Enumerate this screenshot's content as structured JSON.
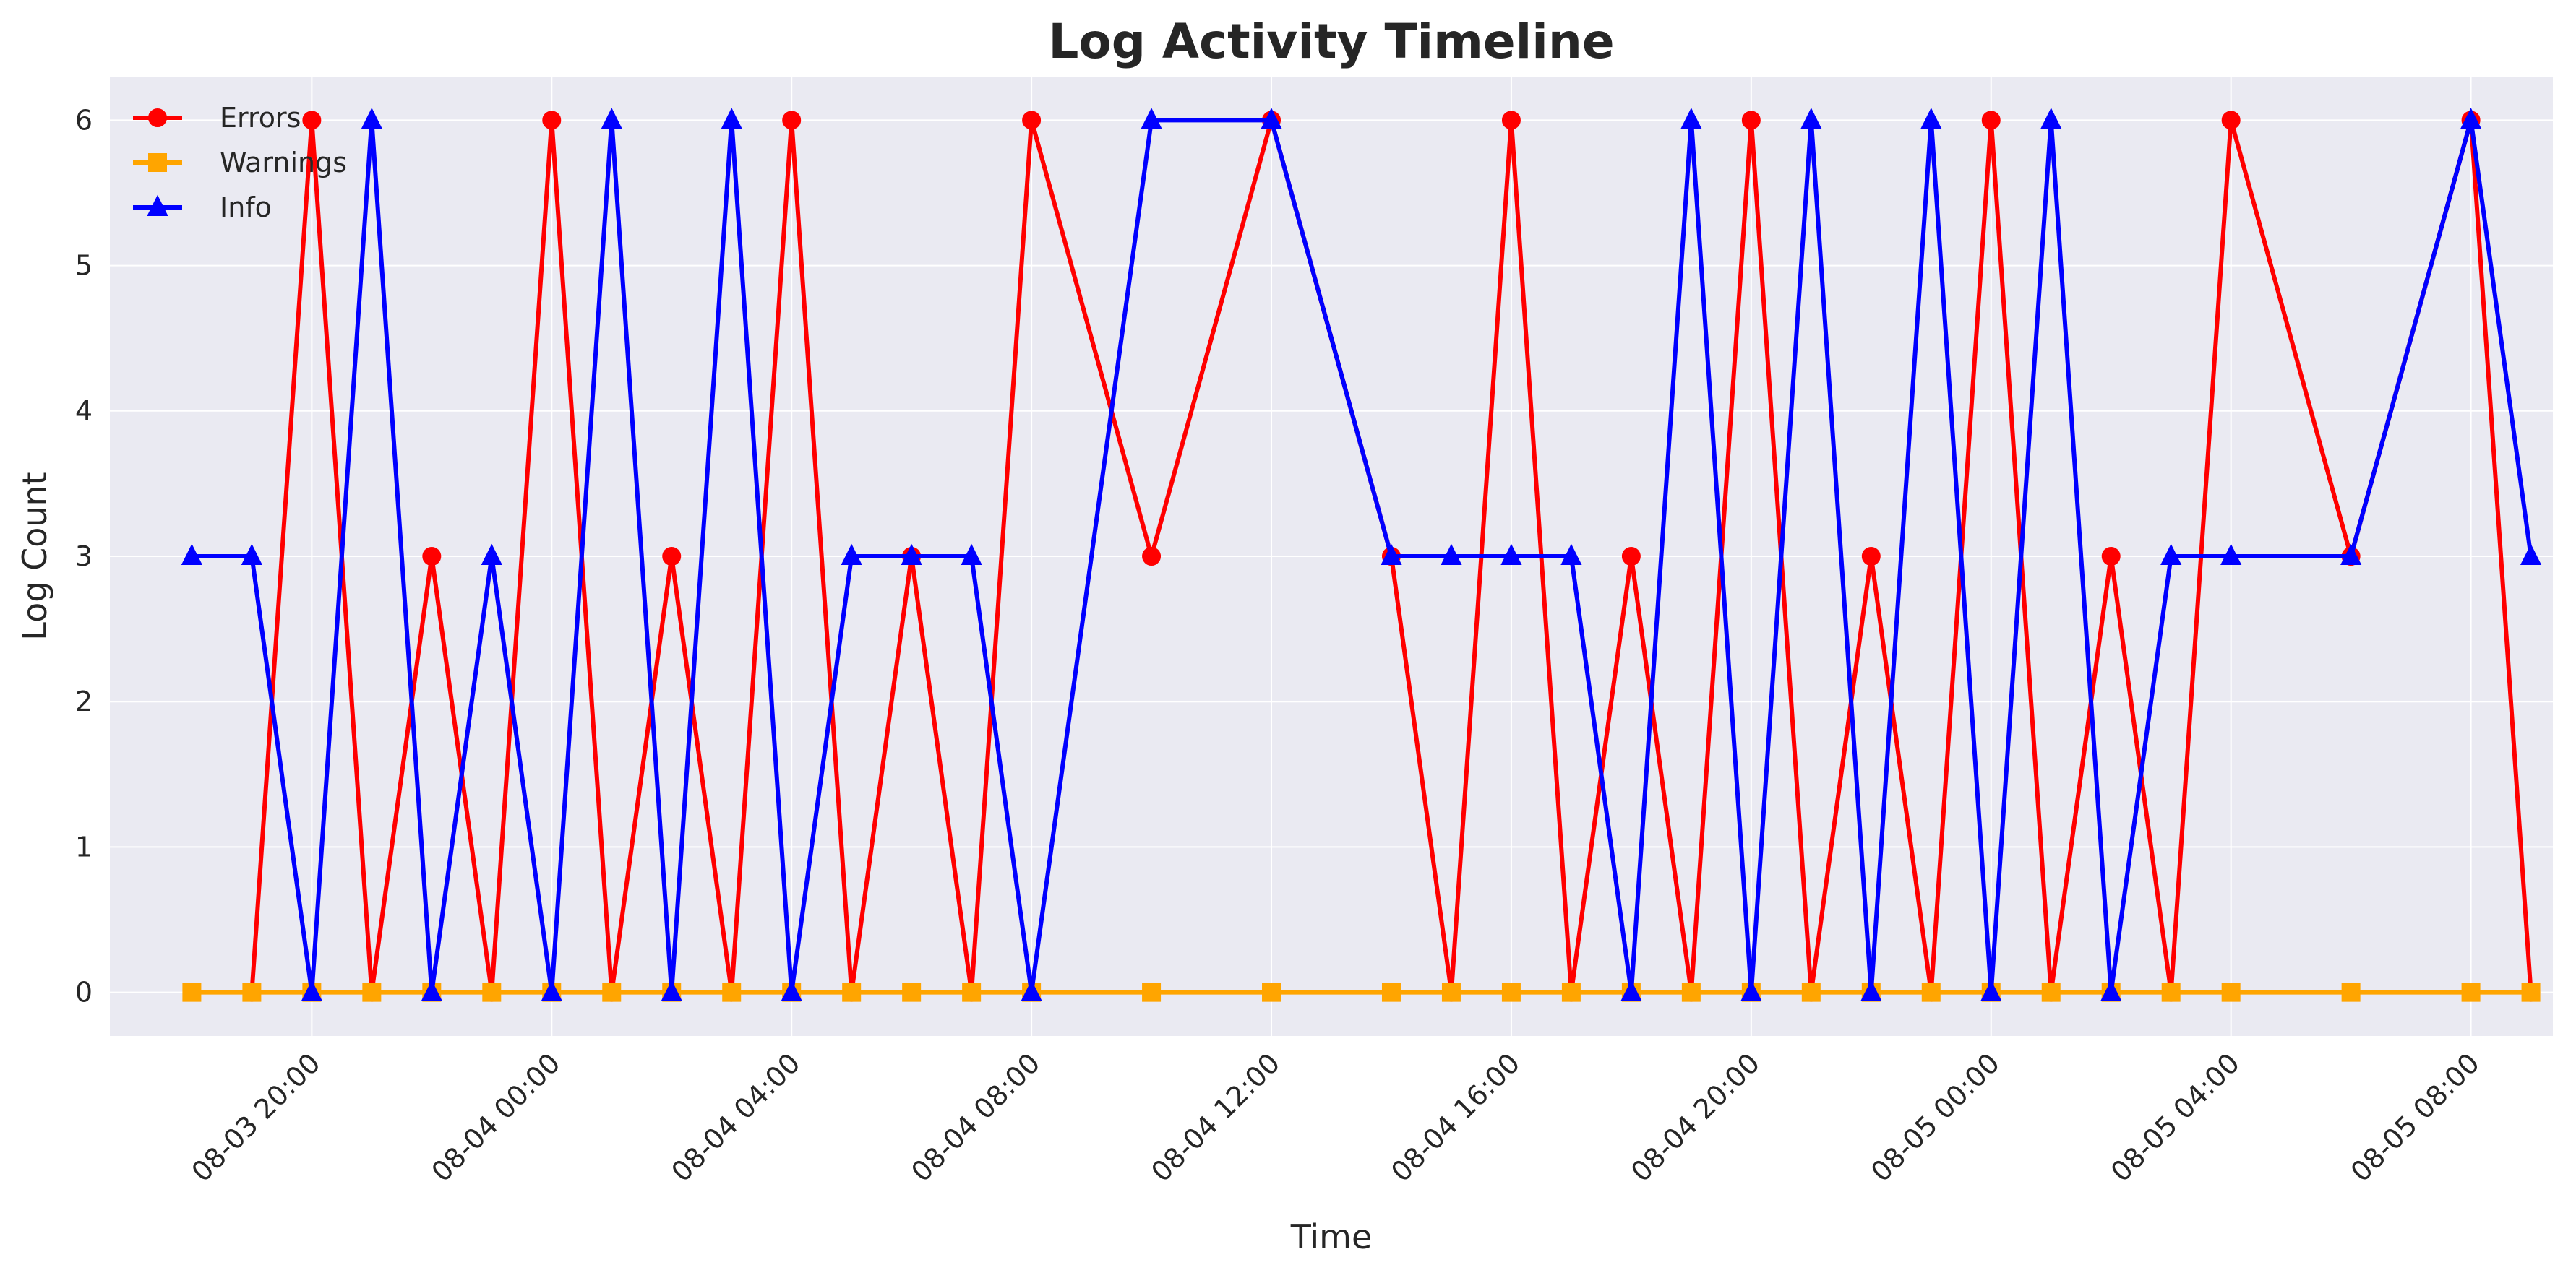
{
  "chart_data": {
    "type": "line",
    "title": "Log Activity Timeline",
    "xlabel": "Time",
    "ylabel": "Log Count",
    "ylim": [
      -0.3,
      6.3
    ],
    "y_ticks": [
      0,
      1,
      2,
      3,
      4,
      5,
      6
    ],
    "xlim": [
      "2025-08-03 16:38",
      "2025-08-05 09:22"
    ],
    "x_ticks": [
      {
        "t": "2025-08-03 20:00",
        "label": "08-03 20:00"
      },
      {
        "t": "2025-08-04 00:00",
        "label": "08-04 00:00"
      },
      {
        "t": "2025-08-04 04:00",
        "label": "08-04 04:00"
      },
      {
        "t": "2025-08-04 08:00",
        "label": "08-04 08:00"
      },
      {
        "t": "2025-08-04 12:00",
        "label": "08-04 12:00"
      },
      {
        "t": "2025-08-04 16:00",
        "label": "08-04 16:00"
      },
      {
        "t": "2025-08-04 20:00",
        "label": "08-04 20:00"
      },
      {
        "t": "2025-08-05 00:00",
        "label": "08-05 00:00"
      },
      {
        "t": "2025-08-05 04:00",
        "label": "08-05 04:00"
      },
      {
        "t": "2025-08-05 08:00",
        "label": "08-05 08:00"
      }
    ],
    "x": [
      "2025-08-03 18:00",
      "2025-08-03 19:00",
      "2025-08-03 20:00",
      "2025-08-03 21:00",
      "2025-08-03 22:00",
      "2025-08-03 23:00",
      "2025-08-04 00:00",
      "2025-08-04 01:00",
      "2025-08-04 02:00",
      "2025-08-04 03:00",
      "2025-08-04 04:00",
      "2025-08-04 05:00",
      "2025-08-04 06:00",
      "2025-08-04 07:00",
      "2025-08-04 08:00",
      "2025-08-04 10:00",
      "2025-08-04 12:00",
      "2025-08-04 14:00",
      "2025-08-04 15:00",
      "2025-08-04 16:00",
      "2025-08-04 17:00",
      "2025-08-04 18:00",
      "2025-08-04 19:00",
      "2025-08-04 20:00",
      "2025-08-04 21:00",
      "2025-08-04 22:00",
      "2025-08-04 23:00",
      "2025-08-05 00:00",
      "2025-08-05 01:00",
      "2025-08-05 02:00",
      "2025-08-05 03:00",
      "2025-08-05 04:00",
      "2025-08-05 06:00",
      "2025-08-05 08:00",
      "2025-08-05 09:00"
    ],
    "series": [
      {
        "name": "Errors",
        "color": "#ff0000",
        "marker": "circle",
        "values": [
          null,
          0,
          6,
          0,
          3,
          0,
          6,
          0,
          3,
          0,
          6,
          0,
          3,
          0,
          6,
          3,
          6,
          3,
          0,
          6,
          0,
          3,
          0,
          6,
          0,
          3,
          0,
          6,
          0,
          3,
          0,
          6,
          3,
          6,
          0
        ]
      },
      {
        "name": "Warnings",
        "color": "#ffa500",
        "marker": "square",
        "values": [
          0,
          0,
          0,
          0,
          0,
          0,
          0,
          0,
          0,
          0,
          0,
          0,
          0,
          0,
          0,
          0,
          0,
          0,
          0,
          0,
          0,
          0,
          0,
          0,
          0,
          0,
          0,
          0,
          0,
          0,
          0,
          0,
          0,
          0,
          0
        ]
      },
      {
        "name": "Info",
        "color": "#0000ff",
        "marker": "triangle",
        "values": [
          3,
          3,
          0,
          6,
          0,
          3,
          0,
          6,
          0,
          6,
          0,
          3,
          3,
          3,
          0,
          6,
          6,
          3,
          3,
          3,
          3,
          0,
          6,
          0,
          6,
          0,
          6,
          0,
          6,
          0,
          3,
          3,
          3,
          6,
          3
        ]
      }
    ],
    "grid": true,
    "legend_position": "top-left",
    "background_color": "#eaeaf2",
    "grid_color": "#ffffff"
  }
}
